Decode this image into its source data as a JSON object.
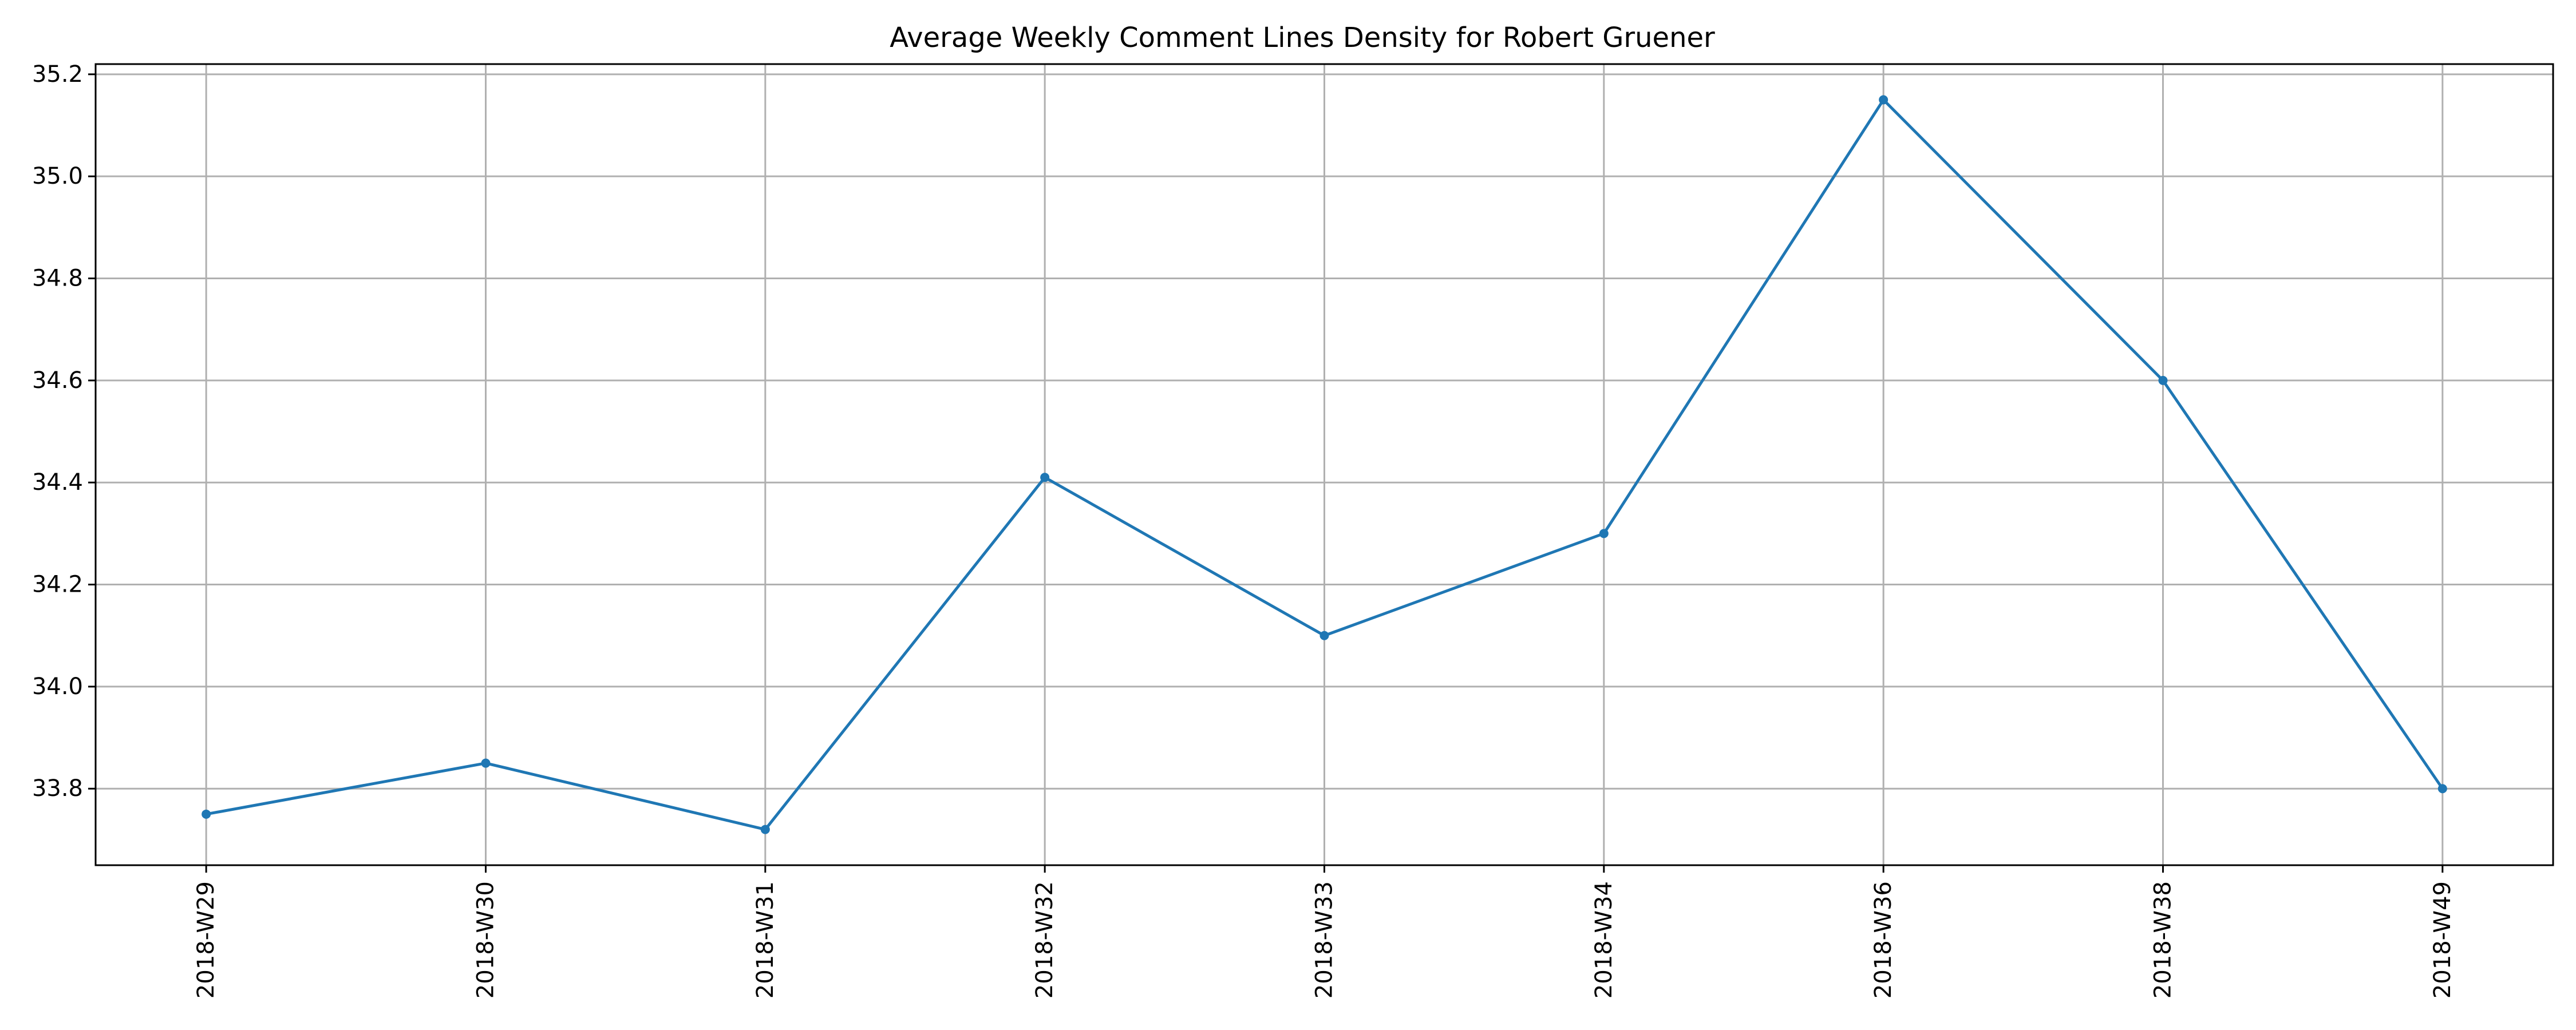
{
  "chart_data": {
    "type": "line",
    "title": "Average Weekly Comment Lines Density for Robert Gruener",
    "xlabel": "",
    "ylabel": "",
    "categories": [
      "2018-W29",
      "2018-W30",
      "2018-W31",
      "2018-W32",
      "2018-W33",
      "2018-W34",
      "2018-W36",
      "2018-W38",
      "2018-W49"
    ],
    "series": [
      {
        "values": [
          33.75,
          33.85,
          33.72,
          34.41,
          34.1,
          34.3,
          35.15,
          34.6,
          33.8
        ]
      }
    ],
    "ylim": [
      33.65,
      35.22
    ],
    "yticks": [
      33.8,
      34.0,
      34.2,
      34.4,
      34.6,
      34.8,
      35.0,
      35.2
    ],
    "ytick_labels": [
      "33.8",
      "34.0",
      "34.2",
      "34.4",
      "34.6",
      "34.8",
      "35.0",
      "35.2"
    ],
    "grid": true,
    "markers": true,
    "x_tick_rotation": "vertical",
    "line_color": "#1f77b4",
    "grid_color": "#b0b0b0",
    "axis_color": "#000000"
  }
}
